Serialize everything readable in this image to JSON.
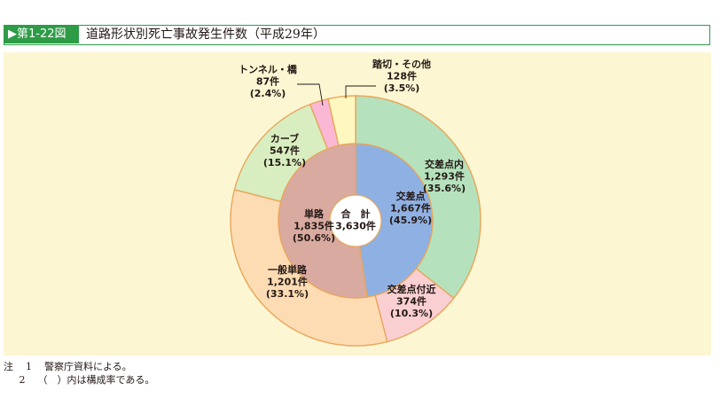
{
  "header": {
    "figure_number": "▶第1-22図",
    "title": "道路形状別死亡事故発生件数（平成29年）"
  },
  "chart_data": {
    "type": "pie",
    "center_label": {
      "line1": "合　計",
      "line2": "3,630件"
    },
    "inner": [
      {
        "name": "交差点",
        "count_text": "1,667件",
        "pct_text": "(45.9%)",
        "value": 1667,
        "color": "#8fb0e2"
      },
      {
        "name": "単路",
        "count_text": "1,835件",
        "pct_text": "(50.6%)",
        "value": 1835,
        "color": "#d9aaa0"
      }
    ],
    "outer": [
      {
        "name": "交差点内",
        "count_text": "1,293件",
        "pct_text": "(35.6%)",
        "value": 1293,
        "color": "#b5e2bd"
      },
      {
        "name": "交差点付近",
        "count_text": "374件",
        "pct_text": "(10.3%)",
        "value": 374,
        "color": "#f9cfd2"
      },
      {
        "name": "一般単路",
        "count_text": "1,201件",
        "pct_text": "(33.1%)",
        "value": 1201,
        "color": "#fddcb3"
      },
      {
        "name": "カーブ",
        "count_text": "547件",
        "pct_text": "(15.1%)",
        "value": 547,
        "color": "#d8eec0"
      },
      {
        "name": "トンネル・橋",
        "count_text": "87件",
        "pct_text": "(2.4%)",
        "value": 87,
        "color": "#fbb8d4"
      },
      {
        "name": "踏切・その他",
        "count_text": "128件",
        "pct_text": "(3.5%)",
        "value": 128,
        "color": "#fef7c0"
      }
    ]
  },
  "notes": {
    "prefix": "注",
    "items": [
      {
        "num": "1",
        "text": "警察庁資料による。"
      },
      {
        "num": "2",
        "text": "（　）内は構成率である。"
      }
    ]
  }
}
